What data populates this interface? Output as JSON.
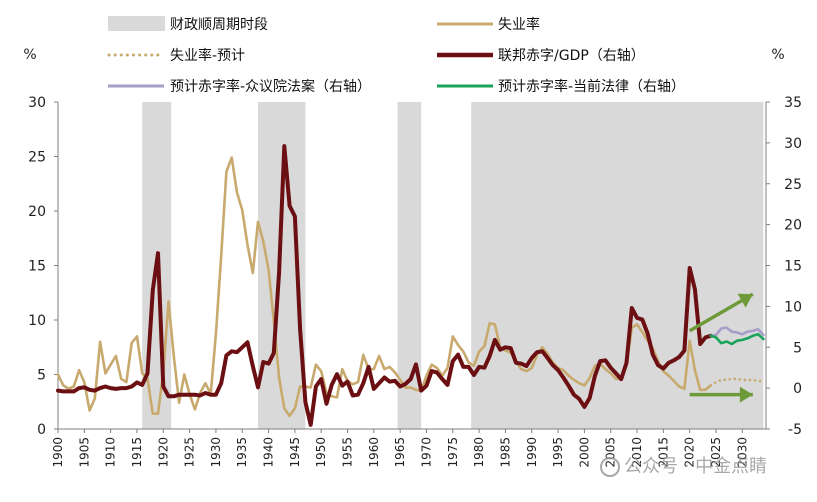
{
  "chart_data": {
    "type": "line",
    "legend": {
      "shading": "财政顺周期时段",
      "unemployment": "失业率",
      "unemployment_forecast": "失业率-预计",
      "deficit": "联邦赤字/GDP（右轴）",
      "forecast_house": "预计赤字率-众议院法案（右轴）",
      "forecast_current": "预计赤字率-当前法律（右轴）"
    },
    "left_axis": {
      "unit": "%",
      "ylim": [
        0,
        30
      ],
      "ticks": [
        0,
        5,
        10,
        15,
        20,
        25,
        30
      ]
    },
    "right_axis": {
      "unit": "%",
      "ylim": [
        -5,
        35
      ],
      "ticks": [
        -5,
        0,
        5,
        10,
        15,
        20,
        25,
        30,
        35
      ]
    },
    "x_axis": {
      "ticks": [
        1900,
        1905,
        1910,
        1915,
        1920,
        1925,
        1930,
        1935,
        1940,
        1945,
        1950,
        1955,
        1960,
        1965,
        1970,
        1975,
        1980,
        1985,
        1990,
        1995,
        2000,
        2005,
        2010,
        2015,
        2020,
        2025,
        2030
      ]
    },
    "shaded_periods": [
      [
        1916,
        1921.5
      ],
      [
        1938,
        1947
      ],
      [
        1964.5,
        1969
      ],
      [
        1978.5,
        2034
      ]
    ],
    "series": [
      {
        "name": "失业率",
        "axis": "left",
        "color": "#c8a96e",
        "points": [
          [
            1900,
            5.0
          ],
          [
            1901,
            4.0
          ],
          [
            1902,
            3.7
          ],
          [
            1903,
            3.9
          ],
          [
            1904,
            5.4
          ],
          [
            1905,
            4.3
          ],
          [
            1906,
            1.7
          ],
          [
            1907,
            2.8
          ],
          [
            1908,
            8.0
          ],
          [
            1909,
            5.1
          ],
          [
            1910,
            5.9
          ],
          [
            1911,
            6.7
          ],
          [
            1912,
            4.6
          ],
          [
            1913,
            4.3
          ],
          [
            1914,
            7.9
          ],
          [
            1915,
            8.5
          ],
          [
            1916,
            5.1
          ],
          [
            1917,
            4.6
          ],
          [
            1918,
            1.4
          ],
          [
            1919,
            1.4
          ],
          [
            1920,
            5.2
          ],
          [
            1921,
            11.7
          ],
          [
            1922,
            6.7
          ],
          [
            1923,
            2.4
          ],
          [
            1924,
            5.0
          ],
          [
            1925,
            3.2
          ],
          [
            1926,
            1.8
          ],
          [
            1927,
            3.3
          ],
          [
            1928,
            4.2
          ],
          [
            1929,
            3.2
          ],
          [
            1930,
            8.7
          ],
          [
            1931,
            15.9
          ],
          [
            1932,
            23.6
          ],
          [
            1933,
            24.9
          ],
          [
            1934,
            21.7
          ],
          [
            1935,
            20.1
          ],
          [
            1936,
            16.9
          ],
          [
            1937,
            14.3
          ],
          [
            1938,
            19.0
          ],
          [
            1939,
            17.2
          ],
          [
            1940,
            14.6
          ],
          [
            1941,
            9.9
          ],
          [
            1942,
            4.7
          ],
          [
            1943,
            1.9
          ],
          [
            1944,
            1.2
          ],
          [
            1945,
            1.9
          ],
          [
            1946,
            3.9
          ],
          [
            1947,
            3.9
          ],
          [
            1948,
            3.8
          ],
          [
            1949,
            5.9
          ],
          [
            1950,
            5.3
          ],
          [
            1951,
            3.3
          ],
          [
            1952,
            3.0
          ],
          [
            1953,
            2.9
          ],
          [
            1954,
            5.5
          ],
          [
            1955,
            4.4
          ],
          [
            1956,
            4.1
          ],
          [
            1957,
            4.3
          ],
          [
            1958,
            6.8
          ],
          [
            1959,
            5.5
          ],
          [
            1960,
            5.5
          ],
          [
            1961,
            6.7
          ],
          [
            1962,
            5.5
          ],
          [
            1963,
            5.7
          ],
          [
            1964,
            5.2
          ],
          [
            1965,
            4.5
          ],
          [
            1966,
            3.8
          ],
          [
            1967,
            3.8
          ],
          [
            1968,
            3.6
          ],
          [
            1969,
            3.5
          ],
          [
            1970,
            4.9
          ],
          [
            1971,
            5.9
          ],
          [
            1972,
            5.6
          ],
          [
            1973,
            4.9
          ],
          [
            1974,
            5.6
          ],
          [
            1975,
            8.5
          ],
          [
            1976,
            7.7
          ],
          [
            1977,
            7.1
          ],
          [
            1978,
            6.1
          ],
          [
            1979,
            5.8
          ],
          [
            1980,
            7.1
          ],
          [
            1981,
            7.6
          ],
          [
            1982,
            9.7
          ],
          [
            1983,
            9.6
          ],
          [
            1984,
            7.5
          ],
          [
            1985,
            7.2
          ],
          [
            1986,
            7.0
          ],
          [
            1987,
            6.2
          ],
          [
            1988,
            5.5
          ],
          [
            1989,
            5.3
          ],
          [
            1990,
            5.6
          ],
          [
            1991,
            6.8
          ],
          [
            1992,
            7.5
          ],
          [
            1993,
            6.9
          ],
          [
            1994,
            6.1
          ],
          [
            1995,
            5.6
          ],
          [
            1996,
            5.4
          ],
          [
            1997,
            4.9
          ],
          [
            1998,
            4.5
          ],
          [
            1999,
            4.2
          ],
          [
            2000,
            4.0
          ],
          [
            2001,
            4.7
          ],
          [
            2002,
            5.8
          ],
          [
            2003,
            6.0
          ],
          [
            2004,
            5.5
          ],
          [
            2005,
            5.1
          ],
          [
            2006,
            4.6
          ],
          [
            2007,
            4.6
          ],
          [
            2008,
            5.8
          ],
          [
            2009,
            9.3
          ],
          [
            2010,
            9.6
          ],
          [
            2011,
            8.9
          ],
          [
            2012,
            8.1
          ],
          [
            2013,
            7.4
          ],
          [
            2014,
            6.2
          ],
          [
            2015,
            5.3
          ],
          [
            2016,
            4.9
          ],
          [
            2017,
            4.4
          ],
          [
            2018,
            3.9
          ],
          [
            2019,
            3.7
          ],
          [
            2020,
            8.1
          ],
          [
            2021,
            5.4
          ],
          [
            2022,
            3.6
          ],
          [
            2023,
            3.6
          ],
          [
            2024,
            4.0
          ]
        ]
      },
      {
        "name": "失业率-预计",
        "axis": "left",
        "color": "#c8a96e",
        "style": "dotted",
        "points": [
          [
            2024,
            4.0
          ],
          [
            2025,
            4.3
          ],
          [
            2026,
            4.5
          ],
          [
            2027,
            4.5
          ],
          [
            2028,
            4.6
          ],
          [
            2029,
            4.6
          ],
          [
            2030,
            4.5
          ],
          [
            2031,
            4.5
          ],
          [
            2032,
            4.5
          ],
          [
            2033,
            4.4
          ],
          [
            2034,
            4.4
          ]
        ]
      },
      {
        "name": "联邦赤字/GDP（右轴）",
        "axis": "right",
        "color": "#6b0f12",
        "points": [
          [
            1900,
            -0.3
          ],
          [
            1901,
            -0.4
          ],
          [
            1902,
            -0.4
          ],
          [
            1903,
            -0.4
          ],
          [
            1904,
            0.0
          ],
          [
            1905,
            0.1
          ],
          [
            1906,
            -0.2
          ],
          [
            1907,
            -0.3
          ],
          [
            1908,
            0.0
          ],
          [
            1909,
            0.2
          ],
          [
            1910,
            0.0
          ],
          [
            1911,
            -0.1
          ],
          [
            1912,
            0.0
          ],
          [
            1913,
            0.0
          ],
          [
            1914,
            0.2
          ],
          [
            1915,
            0.7
          ],
          [
            1916,
            0.4
          ],
          [
            1917,
            1.8
          ],
          [
            1918,
            12.0
          ],
          [
            1919,
            16.5
          ],
          [
            1920,
            0.2
          ],
          [
            1921,
            -1.0
          ],
          [
            1922,
            -1.0
          ],
          [
            1923,
            -0.8
          ],
          [
            1924,
            -0.8
          ],
          [
            1925,
            -0.8
          ],
          [
            1926,
            -0.8
          ],
          [
            1927,
            -0.9
          ],
          [
            1928,
            -0.6
          ],
          [
            1929,
            -0.8
          ],
          [
            1930,
            -0.8
          ],
          [
            1931,
            0.6
          ],
          [
            1932,
            4.0
          ],
          [
            1933,
            4.5
          ],
          [
            1934,
            4.4
          ],
          [
            1935,
            5.0
          ],
          [
            1936,
            5.6
          ],
          [
            1937,
            2.7
          ],
          [
            1938,
            0.1
          ],
          [
            1939,
            3.2
          ],
          [
            1940,
            3.0
          ],
          [
            1941,
            4.3
          ],
          [
            1942,
            14.2
          ],
          [
            1943,
            29.6
          ],
          [
            1944,
            22.3
          ],
          [
            1945,
            21.0
          ],
          [
            1946,
            7.2
          ],
          [
            1947,
            -1.7
          ],
          [
            1948,
            -4.5
          ],
          [
            1949,
            0.2
          ],
          [
            1950,
            1.1
          ],
          [
            1951,
            -1.9
          ],
          [
            1952,
            0.4
          ],
          [
            1953,
            1.7
          ],
          [
            1954,
            0.3
          ],
          [
            1955,
            0.8
          ],
          [
            1956,
            -0.9
          ],
          [
            1957,
            -0.8
          ],
          [
            1958,
            0.6
          ],
          [
            1959,
            2.6
          ],
          [
            1960,
            -0.1
          ],
          [
            1961,
            0.6
          ],
          [
            1962,
            1.3
          ],
          [
            1963,
            0.8
          ],
          [
            1964,
            0.9
          ],
          [
            1965,
            0.2
          ],
          [
            1966,
            0.5
          ],
          [
            1967,
            1.1
          ],
          [
            1968,
            2.9
          ],
          [
            1969,
            -0.3
          ],
          [
            1970,
            0.3
          ],
          [
            1971,
            2.1
          ],
          [
            1972,
            1.9
          ],
          [
            1973,
            1.1
          ],
          [
            1974,
            0.4
          ],
          [
            1975,
            3.3
          ],
          [
            1976,
            4.1
          ],
          [
            1977,
            2.6
          ],
          [
            1978,
            2.6
          ],
          [
            1979,
            1.6
          ],
          [
            1980,
            2.6
          ],
          [
            1981,
            2.5
          ],
          [
            1982,
            3.9
          ],
          [
            1983,
            5.9
          ],
          [
            1984,
            4.7
          ],
          [
            1985,
            5.0
          ],
          [
            1986,
            4.9
          ],
          [
            1987,
            3.1
          ],
          [
            1988,
            3.0
          ],
          [
            1989,
            2.7
          ],
          [
            1990,
            3.7
          ],
          [
            1991,
            4.4
          ],
          [
            1992,
            4.5
          ],
          [
            1993,
            3.7
          ],
          [
            1994,
            2.8
          ],
          [
            1995,
            2.2
          ],
          [
            1996,
            1.3
          ],
          [
            1997,
            0.3
          ],
          [
            1998,
            -0.8
          ],
          [
            1999,
            -1.3
          ],
          [
            2000,
            -2.3
          ],
          [
            2001,
            -1.2
          ],
          [
            2002,
            1.5
          ],
          [
            2003,
            3.3
          ],
          [
            2004,
            3.4
          ],
          [
            2005,
            2.5
          ],
          [
            2006,
            1.8
          ],
          [
            2007,
            1.1
          ],
          [
            2008,
            3.1
          ],
          [
            2009,
            9.8
          ],
          [
            2010,
            8.6
          ],
          [
            2011,
            8.4
          ],
          [
            2012,
            6.7
          ],
          [
            2013,
            4.1
          ],
          [
            2014,
            2.8
          ],
          [
            2015,
            2.4
          ],
          [
            2016,
            3.1
          ],
          [
            2017,
            3.4
          ],
          [
            2018,
            3.8
          ],
          [
            2019,
            4.6
          ],
          [
            2020,
            14.7
          ],
          [
            2021,
            12.1
          ],
          [
            2022,
            5.4
          ],
          [
            2023,
            6.2
          ],
          [
            2024,
            6.4
          ]
        ]
      },
      {
        "name": "预计赤字率-众议院法案（右轴）",
        "axis": "right",
        "color": "#a89cc8",
        "points": [
          [
            2024,
            6.4
          ],
          [
            2025,
            6.5
          ],
          [
            2026,
            7.3
          ],
          [
            2027,
            7.4
          ],
          [
            2028,
            6.9
          ],
          [
            2029,
            6.8
          ],
          [
            2030,
            6.6
          ],
          [
            2031,
            6.9
          ],
          [
            2032,
            7.0
          ],
          [
            2033,
            7.2
          ],
          [
            2034,
            6.5
          ]
        ]
      },
      {
        "name": "预计赤字率-当前法律（右轴）",
        "axis": "right",
        "color": "#1aa35a",
        "points": [
          [
            2024,
            6.4
          ],
          [
            2025,
            6.2
          ],
          [
            2026,
            5.5
          ],
          [
            2027,
            5.7
          ],
          [
            2028,
            5.4
          ],
          [
            2029,
            5.8
          ],
          [
            2030,
            5.9
          ],
          [
            2031,
            6.1
          ],
          [
            2032,
            6.4
          ],
          [
            2033,
            6.6
          ],
          [
            2034,
            6.0
          ]
        ]
      }
    ],
    "annotations": [
      {
        "kind": "arrow",
        "color": "#6e9a3a",
        "from": [
          2020.0,
          7.0
        ],
        "to": [
          2032.0,
          11.5
        ],
        "axis": "right"
      },
      {
        "kind": "arrow",
        "color": "#6e9a3a",
        "from": [
          2020.0,
          -0.8
        ],
        "to": [
          2032.0,
          -0.8
        ],
        "axis": "right"
      }
    ]
  },
  "watermark": "公众号 · 中金点睛"
}
